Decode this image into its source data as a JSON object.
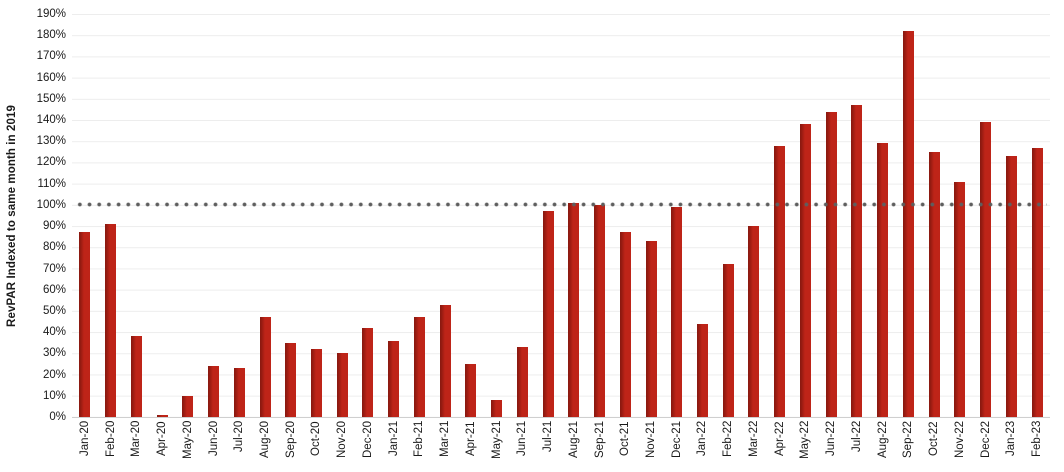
{
  "chart_data": {
    "type": "bar",
    "title": "",
    "xlabel": "",
    "ylabel": "RevPAR Indexed to same month in 2019",
    "ylim": [
      0,
      190
    ],
    "ytick_step": 10,
    "ytick_labels": [
      "0%",
      "10%",
      "20%",
      "30%",
      "40%",
      "50%",
      "60%",
      "70%",
      "80%",
      "90%",
      "100%",
      "110%",
      "120%",
      "130%",
      "140%",
      "150%",
      "160%",
      "170%",
      "180%",
      "190%"
    ],
    "grid": true,
    "legend": "none",
    "reference_line": {
      "value": 100,
      "style": "dotted"
    },
    "categories": [
      "Jan-20",
      "Feb-20",
      "Mar-20",
      "Apr-20",
      "May-20",
      "Jun-20",
      "Jul-20",
      "Aug-20",
      "Sep-20",
      "Oct-20",
      "Nov-20",
      "Dec-20",
      "Jan-21",
      "Feb-21",
      "Mar-21",
      "Apr-21",
      "May-21",
      "Jun-21",
      "Jul-21",
      "Aug-21",
      "Sep-21",
      "Oct-21",
      "Nov-21",
      "Dec-21",
      "Jan-22",
      "Feb-22",
      "Mar-22",
      "Apr-22",
      "May-22",
      "Jun-22",
      "Jul-22",
      "Aug-22",
      "Sep-22",
      "Oct-22",
      "Nov-22",
      "Dec-22",
      "Jan-23",
      "Feb-23"
    ],
    "values": [
      87,
      91,
      38,
      1,
      10,
      24,
      23,
      47,
      35,
      32,
      30,
      42,
      36,
      47,
      53,
      25,
      8,
      33,
      97,
      101,
      100,
      87,
      83,
      99,
      44,
      72,
      90,
      128,
      138,
      144,
      147,
      129,
      182,
      125,
      111,
      139,
      123,
      127
    ],
    "colors": {
      "bar": "#BE2418",
      "bar_edge": "#8C1910",
      "reference_dot": "#5E5E5E",
      "gridline": "#EDEDED",
      "axis_line": "#CFCFCF",
      "text": "#1A1A1A"
    }
  }
}
